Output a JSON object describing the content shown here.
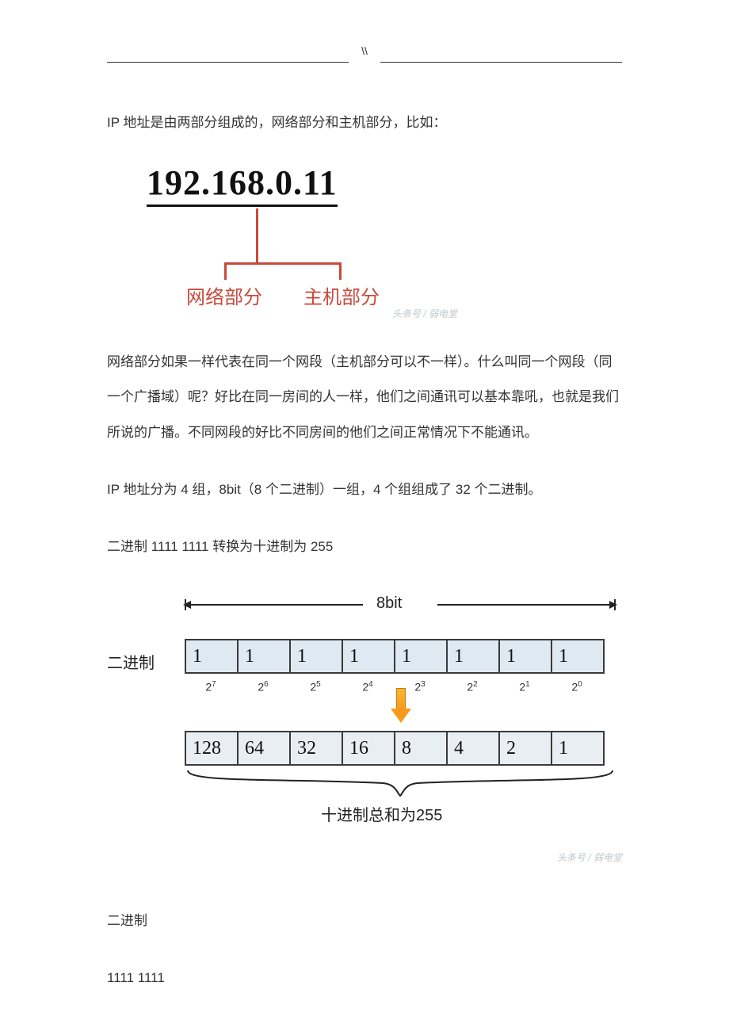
{
  "header": {
    "mark": "\\\\"
  },
  "intro": "IP 地址是由两部分组成的，网络部分和主机部分，比如：",
  "fig1": {
    "ip": "192.168.0.11",
    "label_network": "网络部分",
    "label_host": "主机部分",
    "line_color": "#c94a3b",
    "ip_color": "#111111",
    "watermark": "头条号 / 弱电堂"
  },
  "para_segment": "网络部分如果一样代表在同一个网段（主机部分可以不一样）。什么叫同一个网段（同一个广播域）呢？好比在同一房间的人一样，他们之间通讯可以基本靠吼，也就是我们所说的广播。不同网段的好比不同房间的他们之间正常情况下不能通讯。",
  "para_groups": "IP 地址分为 4 组，8bit（8 个二进制）一组，4 个组组成了 32 个二进制。",
  "para_convert": "二进制 1111 1111 转换为十进制为 255",
  "fig2": {
    "side_label": "二进制",
    "bit_label": "8bit",
    "binary_row": [
      "1",
      "1",
      "1",
      "1",
      "1",
      "1",
      "1",
      "1"
    ],
    "exponents": [
      "2<sup>7</sup>",
      "2<sup>6</sup>",
      "2<sup>5</sup>",
      "2<sup>4</sup>",
      "2<sup>3</sup>",
      "2<sup>2</sup>",
      "2<sup>1</sup>",
      "2<sup>0</sup>"
    ],
    "decimal_row": [
      "128",
      "64",
      "32",
      "16",
      "8",
      "4",
      "2",
      "1"
    ],
    "sum_label": "十进制总和为255",
    "cell_bg_bin": "#dfe9f2",
    "cell_bg_dec": "#e9eef2",
    "cell_border": "#3a3a3a",
    "watermark": "头条号 / 弱电堂"
  },
  "tail1": "二进制",
  "tail2": "1111 1111"
}
